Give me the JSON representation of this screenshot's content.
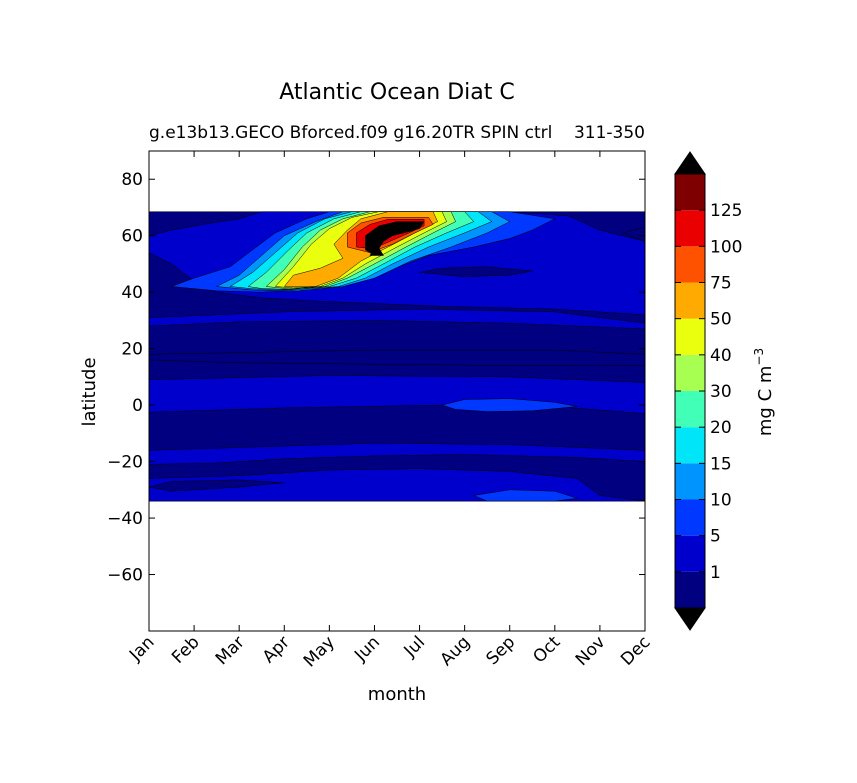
{
  "chart_data": {
    "type": "heatmap",
    "title": "Atlantic Ocean Diat C",
    "subtitle_left": "g.e13b13.GECO Bforced.f09 g16.20TR SPIN ctrl",
    "subtitle_right": "311-350",
    "xlabel": "month",
    "ylabel": "latitude",
    "x_categories": [
      "Jan",
      "Feb",
      "Mar",
      "Apr",
      "May",
      "Jun",
      "Jul",
      "Aug",
      "Sep",
      "Oct",
      "Nov",
      "Dec"
    ],
    "y_ticks": [
      80,
      60,
      40,
      20,
      0,
      -20,
      -40,
      -60
    ],
    "ylim": [
      -80,
      90
    ],
    "data_lat_range": [
      -34,
      69
    ],
    "grid": false,
    "colorbar": {
      "label": "mg C m",
      "label_sup": "−3",
      "placement": "right",
      "levels": [
        0,
        1,
        5,
        10,
        15,
        20,
        30,
        40,
        50,
        75,
        100,
        125,
        150
      ],
      "tick_labels": [
        "1",
        "5",
        "10",
        "15",
        "20",
        "30",
        "40",
        "50",
        "75",
        "100",
        "125"
      ],
      "colors": [
        "#000080",
        "#0000cd",
        "#0038ff",
        "#0094ff",
        "#00e5f8",
        "#41ffb6",
        "#a6ff51",
        "#e9ff0d",
        "#ffaa00",
        "#ff5200",
        "#ea0000",
        "#7f0000"
      ],
      "extend_min_color": "#000000",
      "extend_max_color": "#000000"
    },
    "regions": [
      {
        "level": 1,
        "points": [
          [
            1,
            68.5
          ],
          [
            12,
            68.5
          ],
          [
            12,
            -34
          ],
          [
            1,
            -34
          ]
        ]
      },
      {
        "level": 2,
        "points": [
          [
            1,
            60
          ],
          [
            1.5,
            62
          ],
          [
            2.2,
            64
          ],
          [
            3,
            66
          ],
          [
            3.5,
            68.5
          ],
          [
            9,
            68.5
          ],
          [
            10.3,
            67
          ],
          [
            11,
            62
          ],
          [
            12,
            58
          ],
          [
            12,
            32
          ],
          [
            10,
            34
          ],
          [
            7.5,
            35
          ],
          [
            6,
            36
          ],
          [
            4.5,
            37
          ],
          [
            3.5,
            38
          ],
          [
            2.5,
            40
          ],
          [
            2,
            44
          ],
          [
            1.5,
            50
          ],
          [
            1,
            54
          ]
        ]
      },
      {
        "level": 2,
        "points": [
          [
            1,
            31
          ],
          [
            4,
            33
          ],
          [
            7,
            34
          ],
          [
            10,
            33
          ],
          [
            12,
            29
          ],
          [
            12,
            27
          ],
          [
            9,
            29
          ],
          [
            6,
            30
          ],
          [
            3,
            29.5
          ],
          [
            1,
            28
          ]
        ]
      },
      {
        "level": 2,
        "points": [
          [
            1,
            9
          ],
          [
            5,
            10.5
          ],
          [
            9,
            10
          ],
          [
            12,
            8
          ],
          [
            12,
            -20
          ],
          [
            10.5,
            -18.5
          ],
          [
            8,
            -17.5
          ],
          [
            6,
            -18
          ],
          [
            4,
            -19
          ],
          [
            2.5,
            -20.5
          ],
          [
            1,
            -21
          ]
        ]
      },
      {
        "level": 2,
        "points": [
          [
            1,
            -26
          ],
          [
            3,
            -25
          ],
          [
            5,
            -23
          ],
          [
            7,
            -22.5
          ],
          [
            9,
            -23.5
          ],
          [
            10.5,
            -26
          ],
          [
            11,
            -32
          ],
          [
            12,
            -34
          ],
          [
            1,
            -34
          ]
        ]
      },
      {
        "level": 1,
        "points": [
          [
            1,
            18
          ],
          [
            6,
            19.5
          ],
          [
            10,
            19.5
          ],
          [
            12,
            18
          ],
          [
            12,
            14
          ],
          [
            9,
            14
          ],
          [
            6,
            14.5
          ],
          [
            3,
            15
          ],
          [
            1,
            16
          ]
        ]
      },
      {
        "level": 1,
        "points": [
          [
            1,
            -2.5
          ],
          [
            4,
            -1
          ],
          [
            7.5,
            0
          ],
          [
            10,
            -0.5
          ],
          [
            12,
            -3
          ],
          [
            12,
            -16
          ],
          [
            9,
            -14
          ],
          [
            6,
            -13.5
          ],
          [
            3,
            -15
          ],
          [
            1,
            -16
          ]
        ]
      },
      {
        "level": 1,
        "points": [
          [
            1,
            -29
          ],
          [
            1.5,
            -27
          ],
          [
            3,
            -26.5
          ],
          [
            4,
            -27.5
          ],
          [
            3,
            -29
          ],
          [
            1.5,
            -30.5
          ]
        ]
      },
      {
        "level": 1,
        "points": [
          [
            7,
            47
          ],
          [
            7.5,
            48.5
          ],
          [
            8.5,
            49
          ],
          [
            9.5,
            47.5
          ],
          [
            9,
            46
          ],
          [
            8,
            45.5
          ]
        ]
      },
      {
        "level": 1,
        "points": [
          [
            11.5,
            61
          ],
          [
            12,
            63
          ],
          [
            12,
            58
          ]
        ]
      },
      {
        "level": 3,
        "points": [
          [
            7.5,
            0
          ],
          [
            8,
            2
          ],
          [
            9,
            2.3
          ],
          [
            10,
            1
          ],
          [
            10.5,
            -0.5
          ],
          [
            9.5,
            -2
          ],
          [
            8.5,
            -2.3
          ],
          [
            7.8,
            -1.5
          ]
        ]
      },
      {
        "level": 3,
        "points": [
          [
            8.2,
            -32
          ],
          [
            9,
            -30
          ],
          [
            10,
            -30.5
          ],
          [
            10.5,
            -33
          ],
          [
            10,
            -34
          ],
          [
            8.5,
            -34
          ]
        ]
      },
      {
        "level": 3,
        "points": [
          [
            1.5,
            42
          ],
          [
            2,
            45
          ],
          [
            2.8,
            49
          ],
          [
            3.3,
            55
          ],
          [
            3.8,
            61
          ],
          [
            4.5,
            66
          ],
          [
            5,
            68.5
          ],
          [
            9,
            68.5
          ],
          [
            10,
            66
          ],
          [
            9.5,
            62
          ],
          [
            9,
            59
          ],
          [
            8.2,
            56
          ],
          [
            7.2,
            53
          ],
          [
            6.2,
            47
          ],
          [
            5.5,
            43
          ],
          [
            4.5,
            41
          ],
          [
            3.5,
            40
          ],
          [
            2.5,
            40.5
          ]
        ]
      },
      {
        "level": 4,
        "points": [
          [
            2.5,
            42
          ],
          [
            3,
            46
          ],
          [
            3.5,
            53
          ],
          [
            4,
            60
          ],
          [
            4.7,
            65
          ],
          [
            5.3,
            68.5
          ],
          [
            8.6,
            68.5
          ],
          [
            9,
            65
          ],
          [
            8.5,
            61
          ],
          [
            7.7,
            56
          ],
          [
            6.8,
            51
          ],
          [
            6,
            45
          ],
          [
            5.3,
            42
          ],
          [
            4.3,
            40.5
          ],
          [
            3.3,
            40.8
          ]
        ]
      },
      {
        "level": 5,
        "points": [
          [
            2.8,
            42
          ],
          [
            3.3,
            47
          ],
          [
            3.8,
            54
          ],
          [
            4.3,
            61
          ],
          [
            4.9,
            66
          ],
          [
            5.5,
            68.5
          ],
          [
            8.3,
            68.5
          ],
          [
            8.6,
            65
          ],
          [
            8,
            61
          ],
          [
            7.2,
            56
          ],
          [
            6.4,
            50
          ],
          [
            5.8,
            45
          ],
          [
            5.2,
            42
          ],
          [
            4.2,
            40.8
          ],
          [
            3.3,
            41.2
          ]
        ]
      },
      {
        "level": 6,
        "points": [
          [
            3.2,
            42
          ],
          [
            3.6,
            47
          ],
          [
            4.1,
            55
          ],
          [
            4.5,
            61
          ],
          [
            5.1,
            66
          ],
          [
            5.7,
            68.5
          ],
          [
            8,
            68.5
          ],
          [
            8.2,
            65
          ],
          [
            7.6,
            61
          ],
          [
            6.9,
            56
          ],
          [
            6.2,
            50
          ],
          [
            5.6,
            45
          ],
          [
            5,
            42
          ],
          [
            4.1,
            41
          ],
          [
            3.5,
            41.3
          ]
        ]
      },
      {
        "level": 7,
        "points": [
          [
            3.6,
            42
          ],
          [
            4,
            48
          ],
          [
            4.4,
            56
          ],
          [
            4.8,
            62
          ],
          [
            5.3,
            66
          ],
          [
            5.9,
            68.5
          ],
          [
            7.7,
            68.5
          ],
          [
            7.8,
            65
          ],
          [
            7.3,
            61
          ],
          [
            6.7,
            56
          ],
          [
            6,
            50
          ],
          [
            5.4,
            45
          ],
          [
            4.9,
            42
          ],
          [
            4.1,
            41.2
          ]
        ]
      },
      {
        "level": 8,
        "points": [
          [
            3.8,
            42
          ],
          [
            4.2,
            49
          ],
          [
            4.6,
            57
          ],
          [
            5,
            62.5
          ],
          [
            5.5,
            66.5
          ],
          [
            6.1,
            68.5
          ],
          [
            7.5,
            68.5
          ],
          [
            7.6,
            65
          ],
          [
            7.1,
            61
          ],
          [
            6.5,
            56
          ],
          [
            5.8,
            50
          ],
          [
            5.3,
            45
          ],
          [
            4.8,
            42
          ],
          [
            4.2,
            41.5
          ]
        ]
      },
      {
        "level": 9,
        "points": [
          [
            4,
            42
          ],
          [
            4.2,
            46
          ],
          [
            4.8,
            48.5
          ],
          [
            5.3,
            52
          ],
          [
            5.1,
            57
          ],
          [
            5.4,
            62
          ],
          [
            5.7,
            66
          ],
          [
            6.3,
            68.5
          ],
          [
            7.3,
            68.5
          ],
          [
            7.4,
            65
          ],
          [
            6.9,
            61
          ],
          [
            6.3,
            56
          ],
          [
            5.7,
            51
          ],
          [
            5.2,
            45
          ],
          [
            4.7,
            42
          ]
        ]
      },
      {
        "level": 10,
        "points": [
          [
            5.4,
            56
          ],
          [
            5.4,
            61
          ],
          [
            5.7,
            64.5
          ],
          [
            6.2,
            66.5
          ],
          [
            7.2,
            66.5
          ],
          [
            7.3,
            64
          ],
          [
            6.9,
            61
          ],
          [
            6.4,
            57
          ],
          [
            5.9,
            54
          ]
        ]
      },
      {
        "level": 11,
        "points": [
          [
            5.6,
            56
          ],
          [
            5.6,
            61
          ],
          [
            5.9,
            64
          ],
          [
            6.3,
            65.8
          ],
          [
            7.1,
            65.8
          ],
          [
            7.1,
            63.5
          ],
          [
            6.7,
            60.5
          ],
          [
            6.2,
            57
          ],
          [
            5.9,
            55.5
          ]
        ]
      },
      {
        "level": 12,
        "points": [
          [
            5.8,
            60
          ],
          [
            6.1,
            63.5
          ],
          [
            6.5,
            65
          ],
          [
            7.1,
            65
          ],
          [
            7,
            62.5
          ],
          [
            6.4,
            60
          ],
          [
            6.2,
            58
          ],
          [
            6,
            53
          ],
          [
            5.8,
            55
          ]
        ]
      },
      {
        "level": 13,
        "points": [
          [
            5.9,
            59.5
          ],
          [
            6.2,
            63
          ],
          [
            6.6,
            64.5
          ],
          [
            7,
            64.2
          ],
          [
            6.9,
            62
          ],
          [
            6.4,
            60
          ]
        ]
      },
      {
        "level": 13,
        "points": [
          [
            5.9,
            53
          ],
          [
            6.05,
            57
          ],
          [
            6.2,
            53
          ]
        ]
      }
    ]
  }
}
